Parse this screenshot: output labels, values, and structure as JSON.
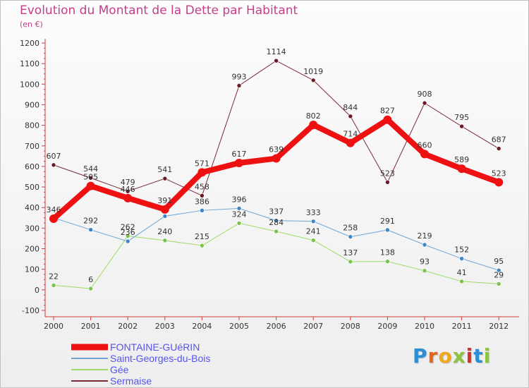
{
  "header": {
    "title": "Evolution du Montant de la Dette par Habitant",
    "unit": "(en €)"
  },
  "brand": {
    "letters": [
      {
        "ch": "P",
        "color": "#2a8fd6"
      },
      {
        "ch": "r",
        "color": "#e8661a"
      },
      {
        "ch": "o",
        "color": "#f2a81c"
      },
      {
        "ch": "x",
        "color": "#8cc43e"
      },
      {
        "ch": "i",
        "color": "#d9312b"
      },
      {
        "ch": "t",
        "color": "#2a8fd6"
      },
      {
        "ch": "i",
        "color": "#8cc43e"
      }
    ]
  },
  "chart_data": {
    "type": "line",
    "x": [
      "2000",
      "2001",
      "2002",
      "2003",
      "2004",
      "2005",
      "2006",
      "2007",
      "2008",
      "2009",
      "2010",
      "2011",
      "2012"
    ],
    "ylim": [
      -100,
      1200
    ],
    "yticks": [
      "-100",
      "0",
      "100",
      "200",
      "300",
      "400",
      "500",
      "600",
      "700",
      "800",
      "900",
      "1000",
      "1100",
      "1200"
    ],
    "grid": false,
    "legend_position": "bottom-left",
    "series": [
      {
        "name": "Sermaise",
        "color": "#7a2a36",
        "marker": "#6a1a26",
        "width": 1,
        "values": [
          607,
          544,
          479,
          541,
          458,
          993,
          1114,
          1019,
          844,
          523,
          908,
          795,
          687
        ],
        "labels": [
          "607",
          "544",
          "479",
          "541",
          "458",
          "993",
          "1114",
          "1019",
          "844",
          "523",
          "908",
          "795",
          "687"
        ]
      },
      {
        "name": "Gée",
        "color": "#9ddc6a",
        "marker": "#7cc24a",
        "width": 1,
        "values": [
          22,
          6,
          262,
          240,
          215,
          324,
          284,
          241,
          137,
          138,
          93,
          41,
          29
        ],
        "labels": [
          "22",
          "6",
          "262",
          "240",
          "215",
          "324",
          "284",
          "241",
          "137",
          "138",
          "93",
          "41",
          "29"
        ]
      },
      {
        "name": "Saint-Georges-du-Bois",
        "color": "#6fa6d6",
        "marker": "#3f86c6",
        "width": 1,
        "values": [
          350,
          292,
          236,
          358,
          386,
          396,
          337,
          333,
          258,
          291,
          219,
          152,
          95
        ],
        "labels": [
          "",
          "292",
          "236",
          "",
          "386",
          "396",
          "337",
          "333",
          "258",
          "291",
          "219",
          "152",
          "95"
        ]
      },
      {
        "name": "FONTAINE-GUéRIN",
        "color": "#ee1111",
        "marker": "#ee1111",
        "width": 8,
        "values": [
          346,
          505,
          446,
          391,
          571,
          617,
          639,
          802,
          714,
          827,
          660,
          589,
          523
        ],
        "labels": [
          "346",
          "505",
          "446",
          "391",
          "571",
          "617",
          "639",
          "802",
          "714",
          "827",
          "660",
          "589",
          "523"
        ]
      }
    ],
    "legend": [
      "FONTAINE-GUéRIN",
      "Saint-Georges-du-Bois",
      "Gée",
      "Sermaise"
    ]
  }
}
